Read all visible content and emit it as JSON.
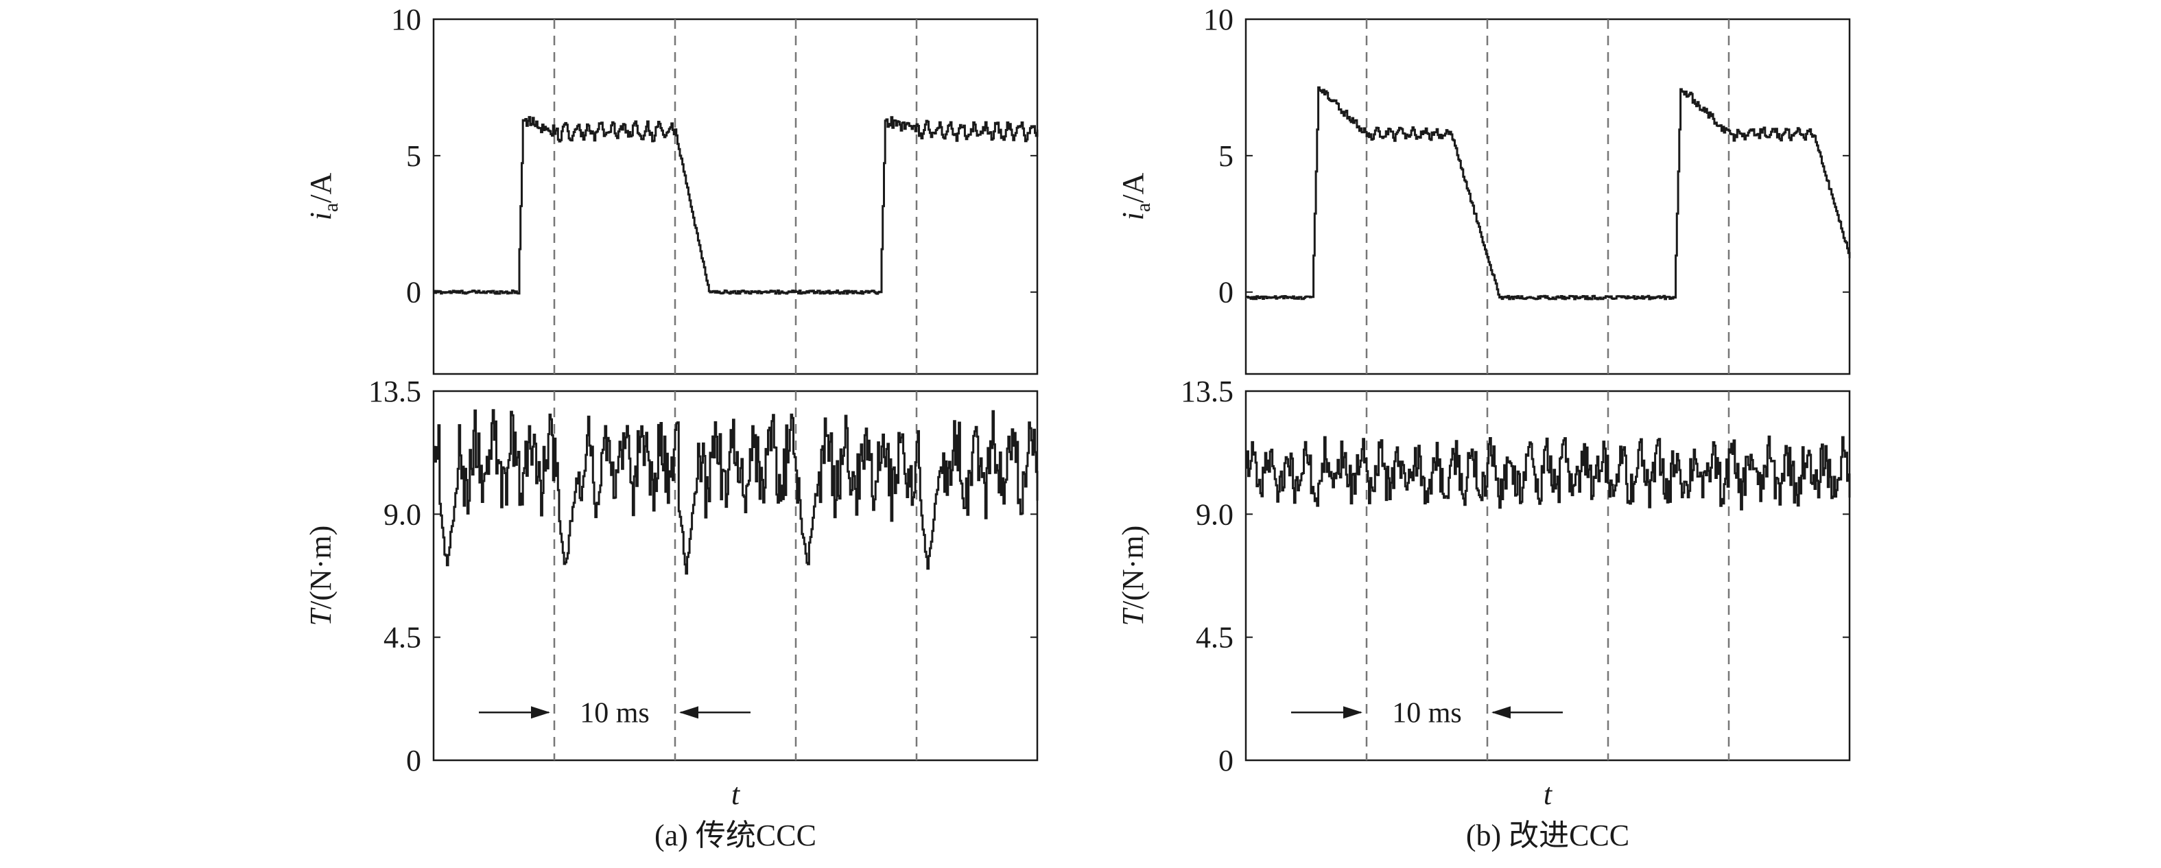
{
  "colors": {
    "trace": "#1a1a1a",
    "frame": "#1a1a1a",
    "grid": "#777777",
    "background": "#ffffff"
  },
  "chart_data": [
    {
      "panel": "a",
      "caption": "(a) 传统CCC",
      "xlabel": "t",
      "period_annotation": "10 ms",
      "x_units": "ms",
      "xlim": [
        0,
        50
      ],
      "vertical_dashed_lines": [
        10,
        20,
        30,
        40
      ],
      "grid": false,
      "subplots": [
        {
          "type": "line",
          "id": "current",
          "ylabel_italic": "i",
          "ylabel_sub": "a",
          "ylabel_rest": "/A",
          "ylim": [
            -3,
            10
          ],
          "yticks": [
            "0",
            "5",
            "10"
          ],
          "ytick_values": [
            0,
            5,
            10
          ],
          "pulses": [
            {
              "start": 7.0,
              "rise_end": 7.4,
              "peak": 6.3,
              "flat": 5.9,
              "settle_end": 10.0,
              "fall_start": 20.0,
              "fall_end": 22.8
            },
            {
              "start": 37.0,
              "rise_end": 37.4,
              "peak": 6.3,
              "flat": 5.9,
              "settle_end": 40.0,
              "fall_start": 50.0,
              "fall_end": 52.8
            }
          ],
          "baseline": 0.0,
          "ripple": 0.35
        },
        {
          "type": "line",
          "id": "torque",
          "ylabel_italic": "T",
          "ylabel_rest": "/(N·m)",
          "ylim": [
            0,
            13.5
          ],
          "yticks": [
            "0",
            "4.5",
            "9.0",
            "13.5"
          ],
          "ytick_values": [
            0,
            4.5,
            9.0,
            13.5
          ],
          "mean": 10.8,
          "amplitude": 1.4,
          "dips": [
            0.5,
            10.3,
            20.3,
            30.3,
            40.3
          ],
          "dip_min": 7.0,
          "max": 13.2
        }
      ]
    },
    {
      "panel": "b",
      "caption": "(b) 改进CCC",
      "xlabel": "t",
      "period_annotation": "10 ms",
      "x_units": "ms",
      "xlim": [
        0,
        50
      ],
      "vertical_dashed_lines": [
        10,
        20,
        30,
        40
      ],
      "grid": false,
      "subplots": [
        {
          "type": "line",
          "id": "current",
          "ylabel_italic": "i",
          "ylabel_sub": "a",
          "ylabel_rest": "/A",
          "ylim": [
            -3,
            10
          ],
          "yticks": [
            "0",
            "5",
            "10"
          ],
          "ytick_values": [
            0,
            5,
            10
          ],
          "pulses": [
            {
              "start": 5.5,
              "rise_end": 6.0,
              "peak": 7.5,
              "flat": 5.8,
              "settle_end": 10.0,
              "fall_start": 17.0,
              "fall_end": 21.0
            },
            {
              "start": 35.5,
              "rise_end": 36.0,
              "peak": 7.5,
              "flat": 5.8,
              "settle_end": 40.0,
              "fall_start": 47.0,
              "fall_end": 51.0
            }
          ],
          "baseline": -0.2,
          "ripple": 0.25
        },
        {
          "type": "line",
          "id": "torque",
          "ylabel_italic": "T",
          "ylabel_rest": "/(N·m)",
          "ylim": [
            0,
            13.5
          ],
          "yticks": [
            "0",
            "4.5",
            "9.0",
            "13.5"
          ],
          "ytick_values": [
            0,
            4.5,
            9.0,
            13.5
          ],
          "mean": 10.5,
          "amplitude": 0.9,
          "dips": [],
          "dip_min": 8.7,
          "max": 12.6
        }
      ]
    }
  ]
}
